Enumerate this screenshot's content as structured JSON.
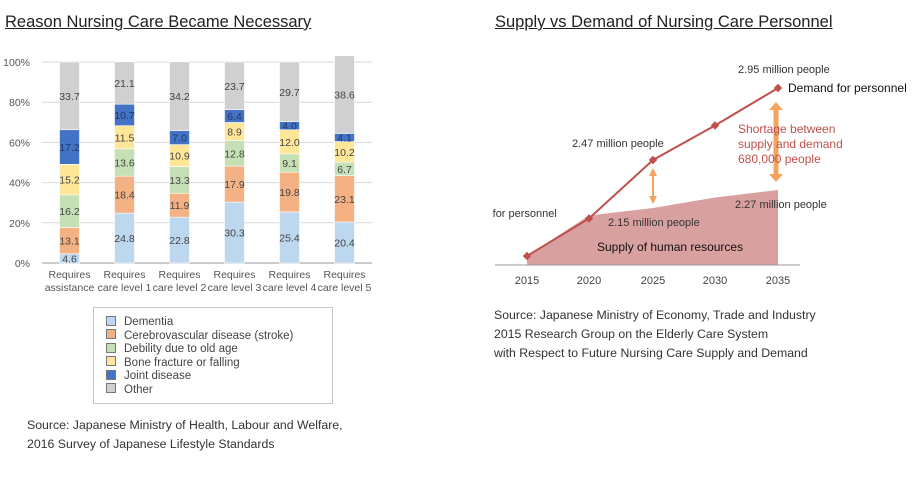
{
  "left_title": "Reason Nursing Care Became Necessary",
  "right_title": "Supply vs Demand of Nursing Care Personnel",
  "left_source": [
    "Source: Japanese Ministry of Health, Labour and Welfare,",
    "2016 Survey of Japanese Lifestyle Standards"
  ],
  "right_source": [
    "Source: Japanese Ministry of Economy, Trade and Industry",
    "2015 Research Group on the Elderly Care System",
    "with Respect to Future Nursing Care Supply and Demand"
  ],
  "colors": {
    "Dementia": "#bdd7ee",
    "Cerebrovascular disease (stroke)": "#f4b183",
    "Debility due to old age": "#c5e0b4",
    "Bone fracture or falling": "#ffe699",
    "Joint disease": "#4472c4",
    "Other": "#d0d0d0",
    "demand_line": "#c0504d",
    "supply_area": "#d9a0a0",
    "arrow": "#f4a460"
  },
  "chart_data": [
    {
      "type": "bar",
      "stacked": true,
      "title": "Reason Nursing Care Became Necessary",
      "categories": [
        [
          "Requires",
          "assistance"
        ],
        [
          "Requires",
          "care level 1"
        ],
        [
          "Requires",
          "care level 2"
        ],
        [
          "Requires",
          "care level 3"
        ],
        [
          "Requires",
          "care level 4"
        ],
        [
          "Requires",
          "care level 5"
        ]
      ],
      "y_ticks": [
        "0%",
        "20%",
        "40%",
        "60%",
        "80%",
        "100%"
      ],
      "ylim": [
        0,
        100
      ],
      "grid": true,
      "series": [
        {
          "name": "Dementia",
          "values": [
            4.6,
            24.8,
            22.8,
            30.3,
            25.4,
            20.4
          ]
        },
        {
          "name": "Cerebrovascular disease (stroke)",
          "values": [
            13.1,
            18.4,
            11.9,
            17.9,
            19.8,
            23.1
          ]
        },
        {
          "name": "Debility due to old age",
          "values": [
            16.2,
            13.6,
            13.3,
            12.8,
            9.1,
            6.7
          ]
        },
        {
          "name": "Bone fracture or falling",
          "values": [
            15.2,
            11.5,
            10.9,
            8.9,
            12.0,
            10.2
          ]
        },
        {
          "name": "Joint disease",
          "values": [
            17.2,
            10.7,
            7.0,
            6.4,
            4.0,
            4.1
          ]
        },
        {
          "name": "Other",
          "values": [
            33.7,
            21.1,
            34.2,
            23.7,
            29.7,
            38.6
          ]
        }
      ],
      "legend_position": "bottom"
    },
    {
      "type": "line",
      "title": "Supply vs Demand of Nursing Care Personnel",
      "x_ticks": [
        "2015",
        "2020",
        "2025",
        "2030",
        "2035"
      ],
      "series": [
        {
          "name": "Demand for personnel",
          "x": [
            2015,
            2020,
            2025,
            2030,
            2035
          ],
          "values": [
            1.83,
            2.08,
            2.47,
            2.7,
            2.95
          ]
        },
        {
          "name": "Supply of human resources",
          "x": [
            2015,
            2020,
            2025,
            2030,
            2035
          ],
          "values": [
            1.83,
            2.1,
            2.15,
            2.22,
            2.27
          ]
        }
      ],
      "ylim": [
        1.7,
        3.05
      ],
      "annotations": {
        "demand_2035": "2.95 million people",
        "demand_2025": "2.47 million people",
        "supply_2025": "2.15 million people",
        "supply_2035": "2.27 million people",
        "demand_label_end": "Demand for personnel",
        "demand_label_start": "Demand for personnel",
        "supply_label": "Supply of human resources",
        "shortage": [
          "Shortage between",
          "supply and demand",
          "680,000 people"
        ]
      }
    }
  ]
}
